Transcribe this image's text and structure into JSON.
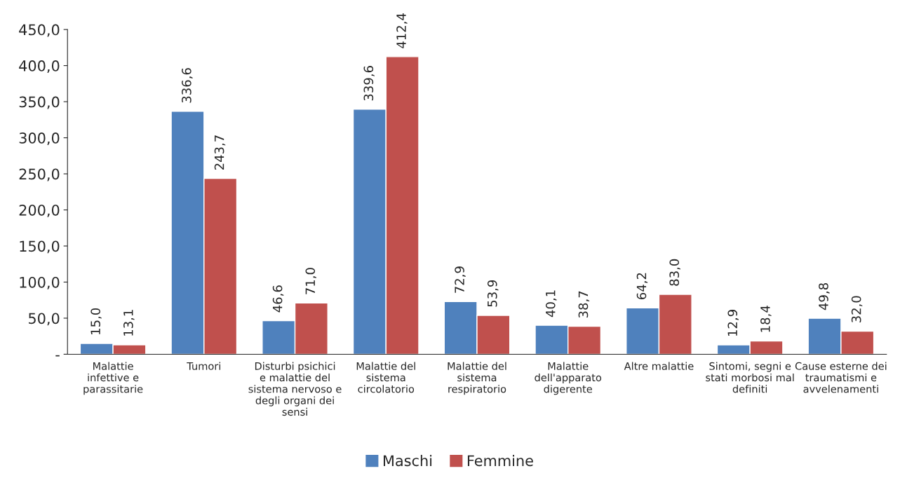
{
  "chart_data": {
    "type": "bar",
    "categories": [
      "Malattie infettive e parassitarie",
      "Tumori",
      "Disturbi psichici e malattie del sistema nervoso e degli organi dei sensi",
      "Malattie del sistema circolatorio",
      "Malattie del sistema respiratorio",
      "Malattie dell'apparato digerente",
      "Altre malattie",
      "Sintomi, segni e stati morbosi mal definiti",
      "Cause esterne dei traumatismi e avvelenamenti"
    ],
    "series": [
      {
        "name": "Maschi",
        "color": "#4f81bd",
        "values": [
          15.0,
          336.6,
          46.6,
          339.6,
          72.9,
          40.1,
          64.2,
          12.9,
          49.8
        ],
        "value_labels": [
          "15,0",
          "336,6",
          "46,6",
          "339,6",
          "72,9",
          "40,1",
          "64,2",
          "12,9",
          "49,8"
        ]
      },
      {
        "name": "Femmine",
        "color": "#c0504d",
        "values": [
          13.1,
          243.7,
          71.0,
          412.4,
          53.9,
          38.7,
          83.0,
          18.4,
          32.0
        ],
        "value_labels": [
          "13,1",
          "243,7",
          "71,0",
          "412,4",
          "53,9",
          "38,7",
          "83,0",
          "18,4",
          "32,0"
        ]
      }
    ],
    "ylim": [
      0,
      450
    ],
    "yticks": [
      {
        "value": 0,
        "label": "-"
      },
      {
        "value": 50,
        "label": "50,0"
      },
      {
        "value": 100,
        "label": "100,0"
      },
      {
        "value": 150,
        "label": "150,0"
      },
      {
        "value": 200,
        "label": "200,0"
      },
      {
        "value": 250,
        "label": "250,0"
      },
      {
        "value": 300,
        "label": "300,0"
      },
      {
        "value": 350,
        "label": "350,0"
      },
      {
        "value": 400,
        "label": "400,0"
      },
      {
        "value": 450,
        "label": "450,0"
      }
    ],
    "grid": false,
    "legend": "bottom"
  }
}
